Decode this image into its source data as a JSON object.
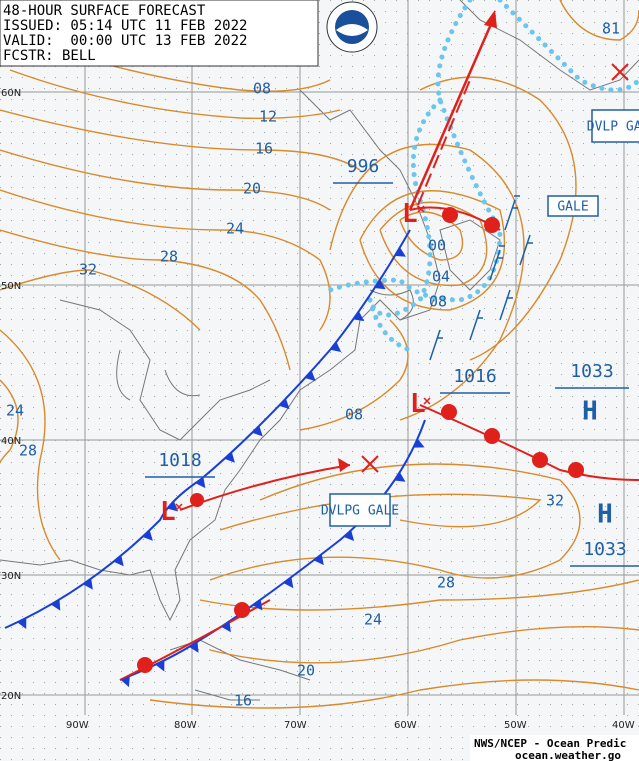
{
  "header": {
    "title": "48-HOUR SURFACE FORECAST",
    "issued": "ISSUED: 05:14 UTC 11 FEB 2022",
    "valid": "VALID:  00:00 UTC 13 FEB 2022",
    "forecaster": "FCSTR: BELL"
  },
  "lat_labels": [
    "60N",
    "50N",
    "40N",
    "30N",
    "20N"
  ],
  "lon_labels": [
    "90W",
    "80W",
    "70W",
    "60W",
    "50W",
    "40W"
  ],
  "isobar_labels": [
    "08",
    "12",
    "16",
    "20",
    "24",
    "28",
    "32",
    "24",
    "28",
    "08",
    "00",
    "04",
    "08",
    "32",
    "28",
    "24",
    "20",
    "16",
    "81"
  ],
  "pressure_centers": [
    "996",
    "1016",
    "1018",
    "1033",
    "1033"
  ],
  "high_symbols": [
    "H",
    "H"
  ],
  "warnings": [
    "DVLP GALE",
    "GALE",
    "DVLPG GALE"
  ],
  "footer": {
    "line1": "NWS/NCEP - Ocean Predic",
    "line2": "ocean.weather.go"
  }
}
